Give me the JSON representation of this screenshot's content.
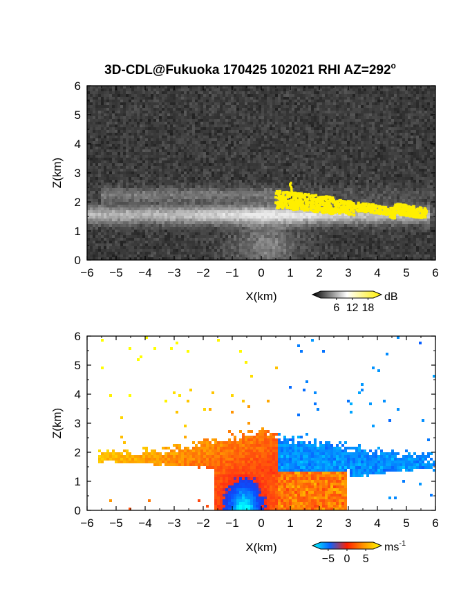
{
  "figure": {
    "title_main": "3D-CDL@Fukuoka 170425 102021 RHI AZ=292",
    "title_sup": "o"
  },
  "colors": {
    "gray_dark": "#2a2a2a",
    "gray_light": "#e8e8e8",
    "signal_yellow": "#ffef00",
    "velocity_cyan": "#2ee6e6",
    "velocity_blue": "#0a64ff",
    "velocity_red": "#ff4010",
    "velocity_orange": "#ff9a00",
    "velocity_yellow": "#ffee00"
  },
  "chart_data": [
    {
      "type": "heatmap",
      "name": "backscatter",
      "xlabel": "X(km)",
      "ylabel": "Z(km)",
      "xlim": [
        -6,
        6
      ],
      "ylim": [
        0,
        6
      ],
      "xticks": [
        -6,
        -5,
        -4,
        -3,
        -2,
        -1,
        0,
        1,
        2,
        3,
        4,
        5,
        6
      ],
      "yticks": [
        0,
        1,
        2,
        3,
        4,
        5,
        6
      ],
      "grid": false,
      "colorbar": {
        "unit": "dB",
        "ticks": [
          6,
          12,
          18
        ],
        "range": [
          0,
          20
        ],
        "colors": [
          "#000000",
          "#ffffff",
          "#ffef00"
        ]
      },
      "features": [
        {
          "kind": "aerosol-layer",
          "x": [
            -6,
            6
          ],
          "z": [
            1.3,
            2.7
          ]
        },
        {
          "kind": "cloud-strong-echo",
          "x": [
            0.5,
            5.7
          ],
          "z": [
            1.4,
            2.3
          ]
        }
      ]
    },
    {
      "type": "heatmap",
      "name": "doppler-velocity",
      "xlabel": "X(km)",
      "ylabel": "Z(km)",
      "xlim": [
        -6,
        6
      ],
      "ylim": [
        0,
        6
      ],
      "xticks": [
        -6,
        -5,
        -4,
        -3,
        -2,
        -1,
        0,
        1,
        2,
        3,
        4,
        5,
        6
      ],
      "yticks": [
        0,
        1,
        2,
        3,
        4,
        5,
        6
      ],
      "grid": false,
      "colorbar": {
        "unit": "ms",
        "unit_sup": "-1",
        "ticks": [
          -5,
          0,
          5
        ],
        "range": [
          -7,
          7
        ],
        "colors": [
          "#00ffff",
          "#0a64ff",
          "#ff2000",
          "#ff9a00",
          "#ffff00"
        ]
      },
      "features": [
        {
          "kind": "receding-layer",
          "x": [
            -5.5,
            0.5
          ],
          "z": [
            1.5,
            2.7
          ],
          "velocity": 4
        },
        {
          "kind": "approaching-layer",
          "x": [
            0.5,
            6
          ],
          "z": [
            1.2,
            2.7
          ],
          "velocity": -4
        },
        {
          "kind": "downdraft-core",
          "x": [
            -1.5,
            0.2
          ],
          "z": [
            0.0,
            1.2
          ],
          "velocity": -6
        }
      ]
    }
  ]
}
